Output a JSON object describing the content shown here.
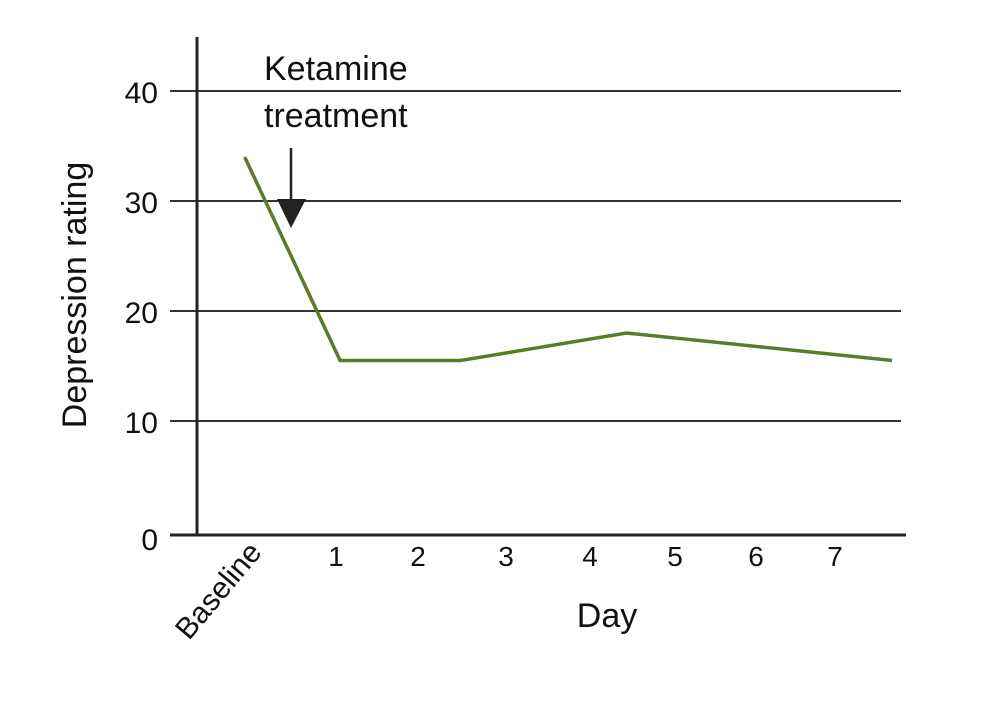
{
  "chart_data": {
    "type": "line",
    "title": "",
    "xlabel": "Day",
    "ylabel": "Depression rating",
    "ylim": [
      0,
      40
    ],
    "yticks": [
      0,
      10,
      20,
      30,
      40
    ],
    "xticks": [
      {
        "value": 0,
        "label": "Baseline"
      },
      {
        "value": 1,
        "label": "1"
      },
      {
        "value": 2,
        "label": "2"
      },
      {
        "value": 3,
        "label": "3"
      },
      {
        "value": 4,
        "label": "4"
      },
      {
        "value": 5,
        "label": "5"
      },
      {
        "value": 6,
        "label": "6"
      },
      {
        "value": 7,
        "label": "7"
      }
    ],
    "grid": "horizontal",
    "series": [
      {
        "x": [
          -0.1,
          1.05,
          2.5,
          4.5,
          7.7
        ],
        "y": [
          34,
          15.5,
          15.5,
          18,
          15.5
        ],
        "color": "#5b7b2b"
      }
    ],
    "annotation": {
      "line1": "Ketamine",
      "line2": "treatment",
      "arrow_x": 0.45
    }
  }
}
